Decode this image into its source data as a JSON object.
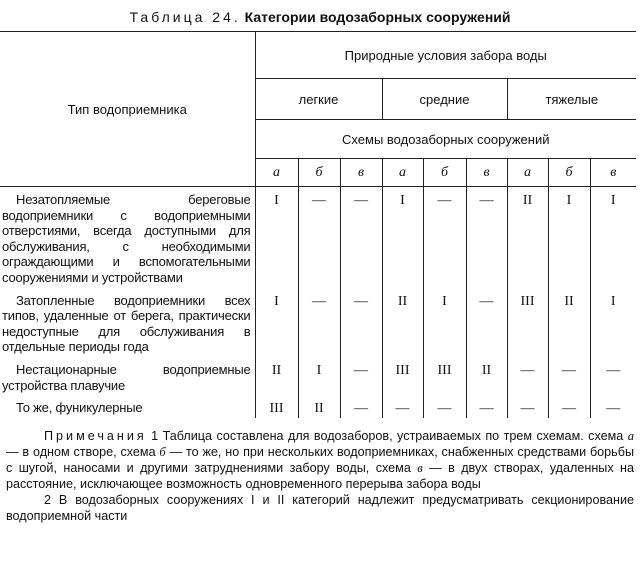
{
  "title": {
    "label": "Таблица 24.",
    "name": "Категории водозаборных сооружений"
  },
  "header": {
    "stub": "Тип водоприемника",
    "conditions": "Природные условия забора воды",
    "groups": [
      "легкие",
      "средние",
      "тяжелые"
    ],
    "schemes": "Схемы водозаборных сооружений",
    "scheme_letters": [
      "а",
      "б",
      "в",
      "а",
      "б",
      "в",
      "а",
      "б",
      "в"
    ]
  },
  "rows": [
    {
      "type": "Незатопляемые береговые водоприемники с водоприемными отверстиями, всегда доступными для обслуживания, с необходимыми ограждающими и вспомогательными сооружениями и устройствами",
      "values": [
        "I",
        "—",
        "—",
        "I",
        "—",
        "—",
        "II",
        "I",
        "I"
      ]
    },
    {
      "type": "Затопленные водоприемники всех типов, удаленные от берега, практически недоступные для обслуживания в отдельные периоды года",
      "values": [
        "I",
        "—",
        "—",
        "II",
        "I",
        "—",
        "III",
        "II",
        "I"
      ]
    },
    {
      "type": "Нестационарные водоприемные устройства плавучие",
      "values": [
        "II",
        "I",
        "—",
        "III",
        "III",
        "II",
        "—",
        "—",
        "—"
      ]
    },
    {
      "type": "То же, фуникулерные",
      "values": [
        "III",
        "II",
        "—",
        "—",
        "—",
        "—",
        "—",
        "—",
        "—"
      ]
    }
  ],
  "notes": {
    "heading": "Примечания",
    "note1_num": "1",
    "note1_a": "Таблица составлена для водозаборов, устраиваемых по трем схемам. схема ",
    "note1_la": "а",
    "note1_b": " — в одном створе, схема ",
    "note1_lb": "б",
    "note1_c": " — то же, но при нескольких водоприемниках, снабженных средствами борьбы с шугой, наносами и другими затруднениями забору воды, схема ",
    "note1_lc": "в",
    "note1_d": " — в двух створах, удаленных на расстояние, исключающее возможность одновременного перерыва забора воды",
    "note2": "2 В водозаборных сооружениях I и II категорий надлежит предусматривать секционирование водоприемной части"
  }
}
